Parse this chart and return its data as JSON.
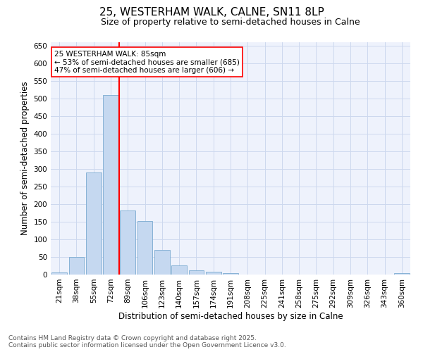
{
  "title": "25, WESTERHAM WALK, CALNE, SN11 8LP",
  "subtitle": "Size of property relative to semi-detached houses in Calne",
  "xlabel": "Distribution of semi-detached houses by size in Calne",
  "ylabel": "Number of semi-detached properties",
  "categories": [
    "21sqm",
    "38sqm",
    "55sqm",
    "72sqm",
    "89sqm",
    "106sqm",
    "123sqm",
    "140sqm",
    "157sqm",
    "174sqm",
    "191sqm",
    "208sqm",
    "225sqm",
    "241sqm",
    "258sqm",
    "275sqm",
    "292sqm",
    "309sqm",
    "326sqm",
    "343sqm",
    "360sqm"
  ],
  "values": [
    7,
    50,
    290,
    510,
    183,
    152,
    70,
    27,
    12,
    8,
    5,
    0,
    0,
    0,
    0,
    0,
    0,
    0,
    0,
    0,
    5
  ],
  "bar_color": "#c5d8f0",
  "bar_edge_color": "#7aaad0",
  "vline_pos": 3.5,
  "vline_color": "red",
  "annotation_text": "25 WESTERHAM WALK: 85sqm\n← 53% of semi-detached houses are smaller (685)\n47% of semi-detached houses are larger (606) →",
  "annotation_box_color": "white",
  "annotation_box_edge_color": "red",
  "ylim": [
    0,
    660
  ],
  "yticks": [
    0,
    50,
    100,
    150,
    200,
    250,
    300,
    350,
    400,
    450,
    500,
    550,
    600,
    650
  ],
  "grid_color": "#ccd8ee",
  "background_color": "#eef2fc",
  "footer_line1": "Contains HM Land Registry data © Crown copyright and database right 2025.",
  "footer_line2": "Contains public sector information licensed under the Open Government Licence v3.0.",
  "title_fontsize": 11,
  "subtitle_fontsize": 9,
  "axis_label_fontsize": 8.5,
  "tick_fontsize": 7.5,
  "annotation_fontsize": 7.5,
  "footer_fontsize": 6.5
}
